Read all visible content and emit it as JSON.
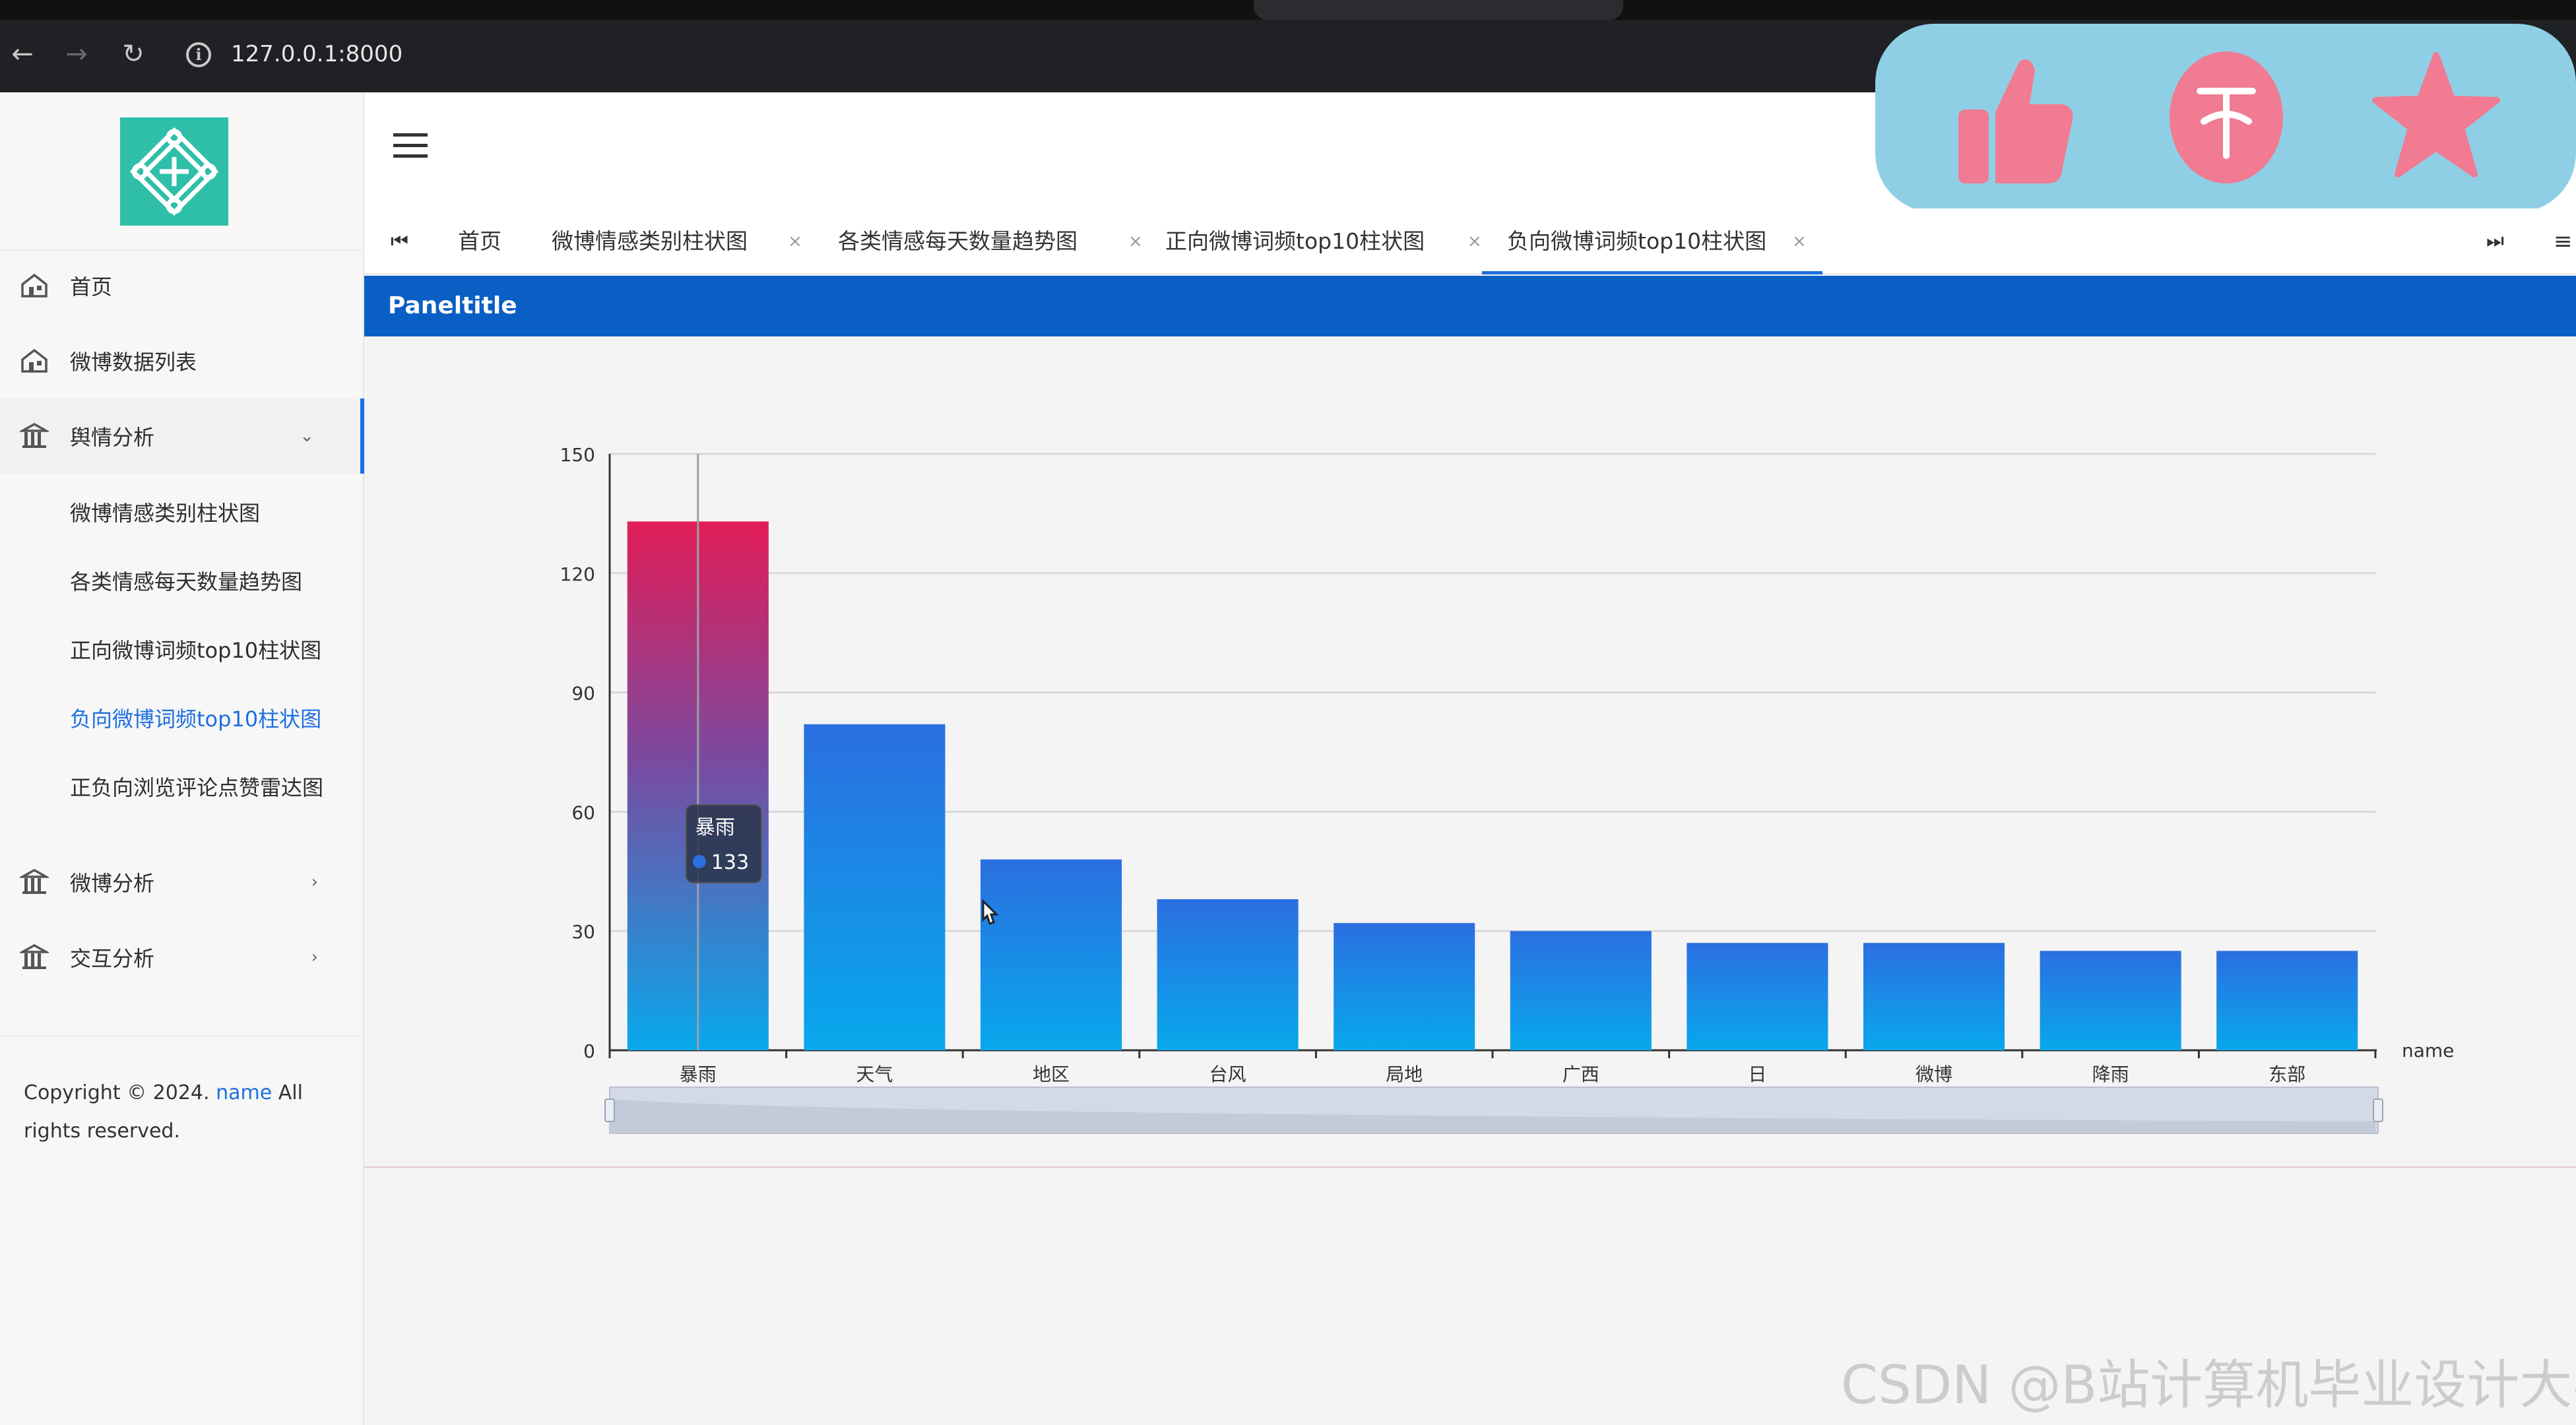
{
  "browser": {
    "url": "127.0.0.1:8000",
    "back_icon": "arrow-left",
    "forward_icon": "arrow-right",
    "reload_icon": "reload",
    "info_icon": "info"
  },
  "sidebar": {
    "menu": [
      {
        "label": "首页",
        "icon": "home"
      },
      {
        "label": "微博数据列表",
        "icon": "home"
      },
      {
        "label": "舆情分析",
        "icon": "bank",
        "expanded": true,
        "children": [
          {
            "label": "微博情感类别柱状图"
          },
          {
            "label": "各类情感每天数量趋势图"
          },
          {
            "label": "正向微博词频top10柱状图"
          },
          {
            "label": "负向微博词频top10柱状图",
            "active": true
          },
          {
            "label": "正负向浏览评论点赞雷达图"
          }
        ]
      },
      {
        "label": "微博分析",
        "icon": "bank",
        "expanded": false
      },
      {
        "label": "交互分析",
        "icon": "bank",
        "expanded": false
      }
    ],
    "copyright": {
      "prefix": "Copyright © 2024.",
      "name": "name",
      "suffix": "All rights reserved."
    }
  },
  "tabs": {
    "first_icon": "⏮",
    "last_icon": "⏭",
    "more_icon": "≡",
    "close_glyph": "×",
    "items": [
      {
        "label": "首页",
        "closable": false
      },
      {
        "label": "微博情感类别柱状图",
        "closable": true
      },
      {
        "label": "各类情感每天数量趋势图",
        "closable": true
      },
      {
        "label": "正向微博词频top10柱状图",
        "closable": true
      },
      {
        "label": "负向微博词频top10柱状图",
        "closable": true,
        "active": true
      }
    ]
  },
  "panel": {
    "title": "Paneltitle"
  },
  "chart_data": {
    "type": "bar",
    "categories": [
      "暴雨",
      "天气",
      "地区",
      "台风",
      "局地",
      "广西",
      "日",
      "微博",
      "降雨",
      "东部"
    ],
    "values": [
      133,
      82,
      48,
      38,
      32,
      30,
      27,
      27,
      25,
      25
    ],
    "xlabel": "name",
    "ylim": [
      0,
      150
    ],
    "yticks": [
      0,
      30,
      60,
      90,
      120,
      150
    ],
    "grid": true,
    "datazoom": true,
    "highlighted_index": 0,
    "tooltip": {
      "category": "暴雨",
      "value": 133
    },
    "colors": {
      "bar_top": "#2b6fe0",
      "bar_bottom": "#08a8ec",
      "highlight_top": "#e21d57",
      "highlight_bottom": "#08a8ec",
      "grid": "#d9d9d9",
      "axis": "#333333"
    }
  },
  "floating_actions": [
    "like-icon",
    "coin-icon",
    "favorite-icon"
  ],
  "watermark": "CSDN @B站计算机毕业设计大学",
  "colors": {
    "primary": "#1e6fe0",
    "panel_header": "#0a5fc4",
    "logo": "#2fbfa8",
    "action_panel": "#8fcfe6",
    "action_icon": "#f07b93"
  }
}
